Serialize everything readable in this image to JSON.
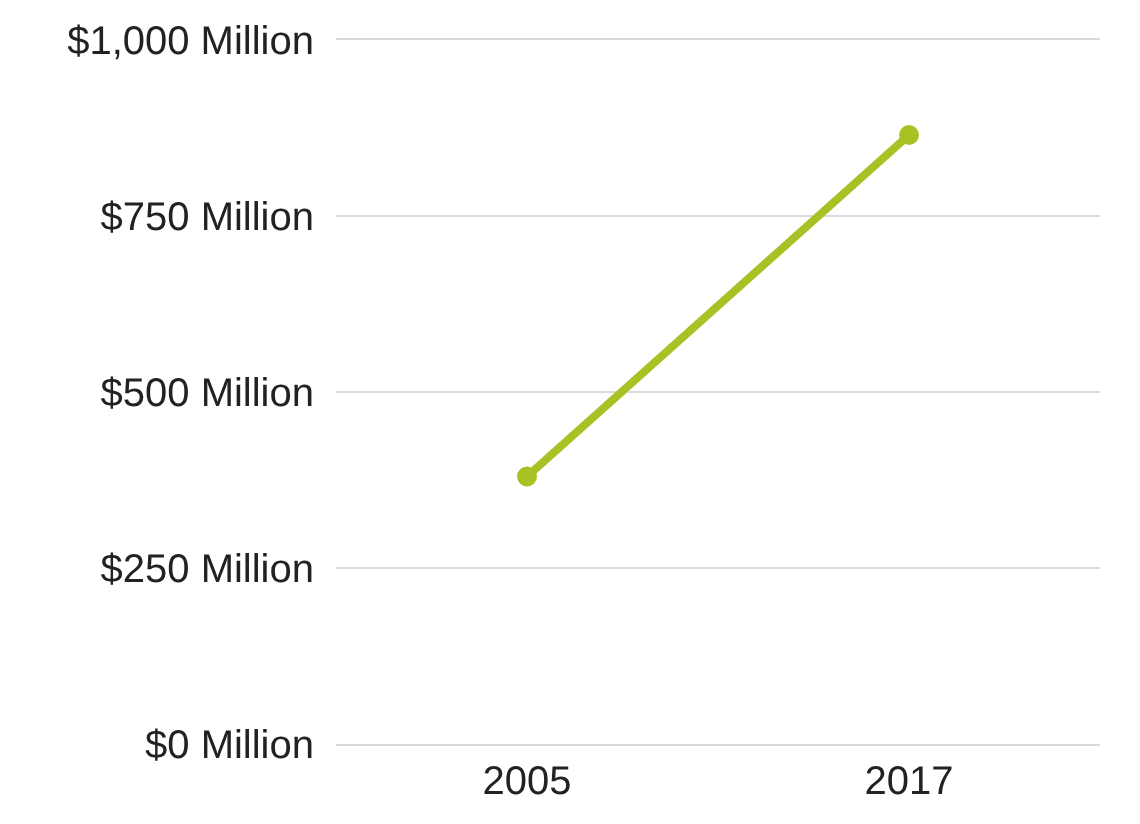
{
  "chart_data": {
    "type": "line",
    "categories": [
      "2005",
      "2017"
    ],
    "series": [
      {
        "color": "#a8c225",
        "values": [
          380,
          865
        ]
      }
    ],
    "ylim": [
      0,
      1000
    ],
    "yticks": [
      {
        "value": 0,
        "label": "$0 Million"
      },
      {
        "value": 250,
        "label": "$250 Million"
      },
      {
        "value": 500,
        "label": "$500 Million"
      },
      {
        "value": 750,
        "label": "$750 Million"
      },
      {
        "value": 1000,
        "label": "$1,000 Million"
      }
    ],
    "grid": "y",
    "marker": "circle",
    "line_style": "solid"
  }
}
